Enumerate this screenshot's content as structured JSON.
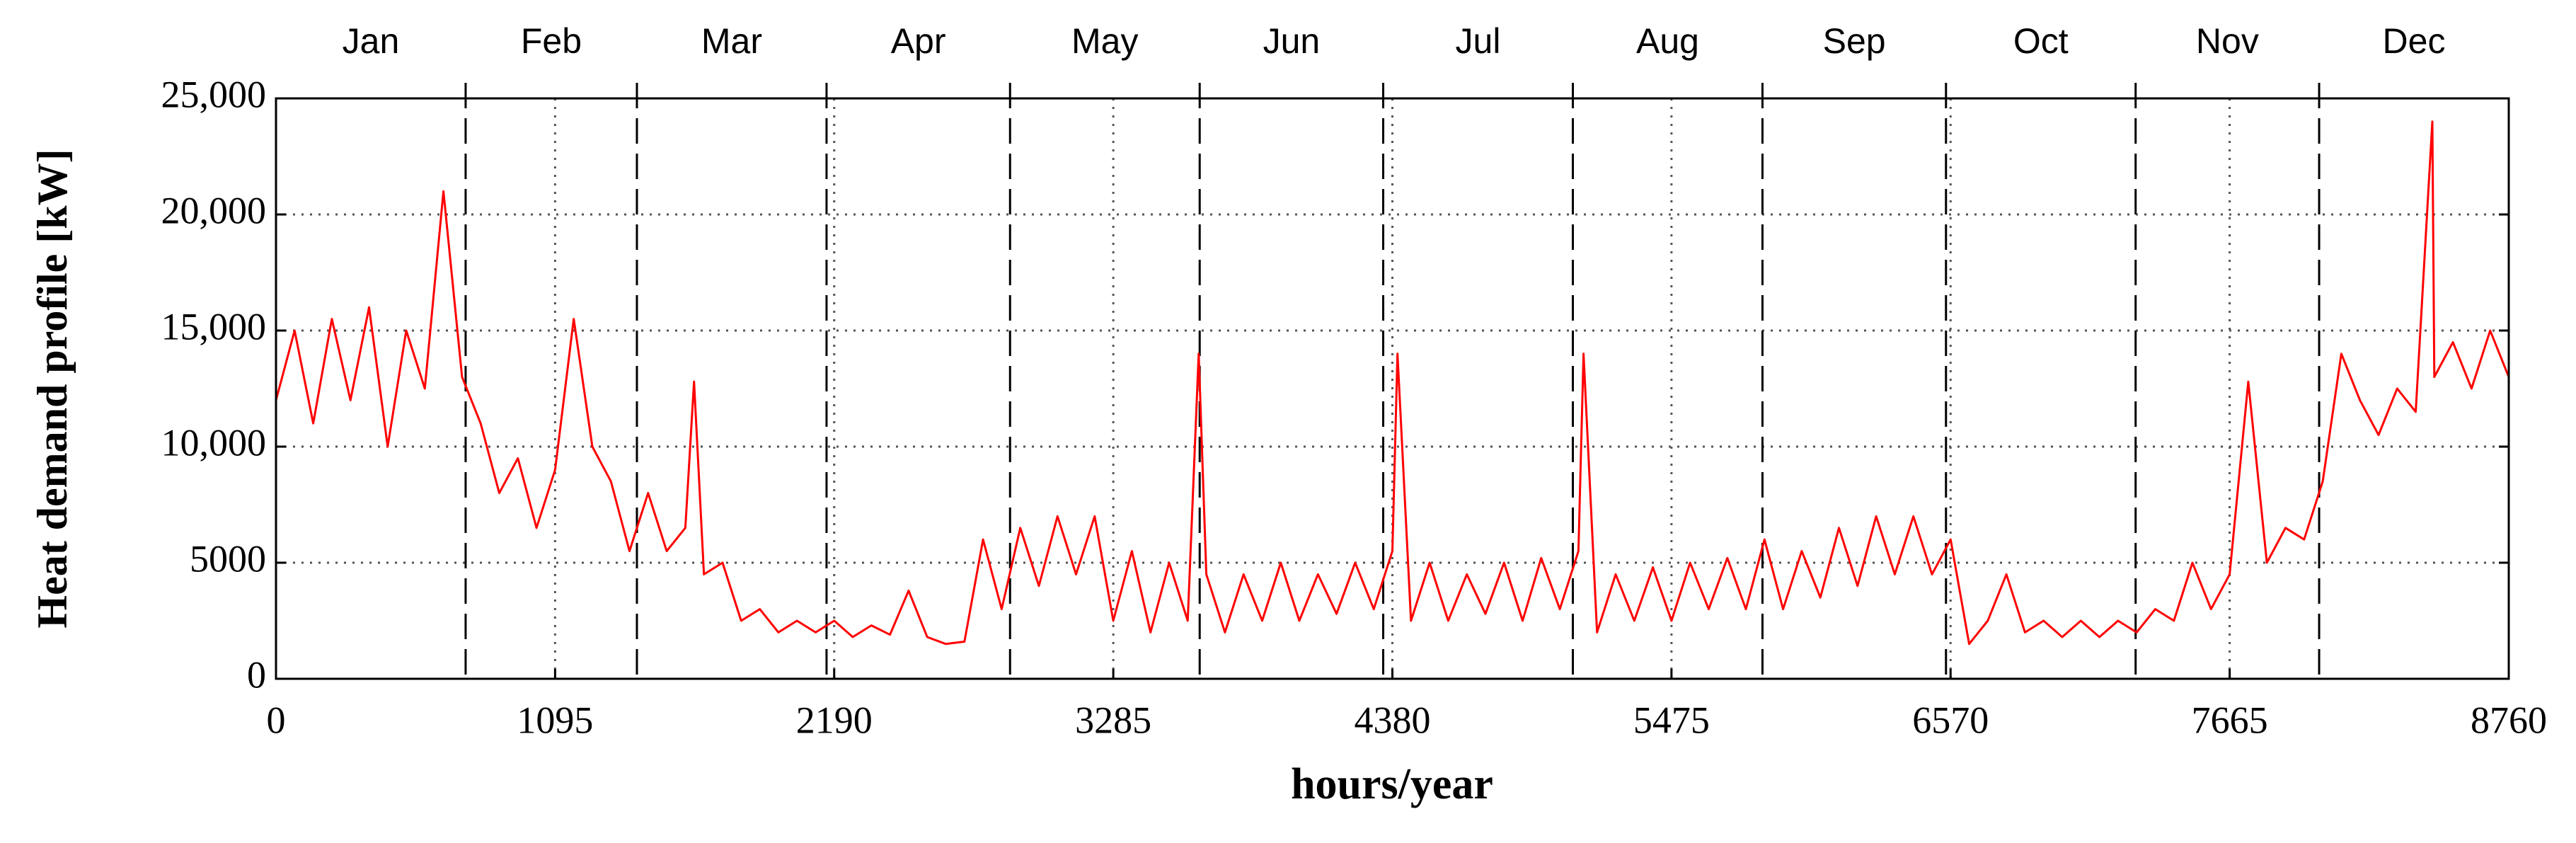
{
  "chart_data": {
    "type": "line",
    "xlabel": "hours/year",
    "ylabel": "Heat demand profile [kW]",
    "color": "#ff0000",
    "grid": true,
    "xlim": [
      0,
      8760
    ],
    "ylim": [
      0,
      25000
    ],
    "xticks": [
      0,
      1095,
      2190,
      3285,
      4380,
      5475,
      6570,
      7665,
      8760
    ],
    "yticks": [
      0,
      5000,
      {
        "value": 10000,
        "label": "10,000"
      },
      {
        "value": 15000,
        "label": "15,000"
      },
      {
        "value": 20000,
        "label": "20,000"
      },
      {
        "value": 25000,
        "label": "25,000"
      }
    ],
    "months": [
      "Jan",
      "Feb",
      "Mar",
      "Apr",
      "May",
      "Jun",
      "Jul",
      "Aug",
      "Sep",
      "Oct",
      "Nov",
      "Dec"
    ],
    "month_edges": [
      0,
      744,
      1416,
      2160,
      2880,
      3624,
      4344,
      5088,
      5832,
      6552,
      7296,
      8016,
      8760
    ],
    "x": [
      0,
      73,
      146,
      219,
      292,
      365,
      438,
      511,
      584,
      657,
      730,
      803,
      876,
      949,
      1022,
      1095,
      1168,
      1241,
      1314,
      1387,
      1460,
      1533,
      1606,
      1640,
      1679,
      1752,
      1825,
      1898,
      1971,
      2044,
      2117,
      2190,
      2263,
      2336,
      2409,
      2482,
      2555,
      2628,
      2701,
      2774,
      2847,
      2920,
      2993,
      3066,
      3139,
      3212,
      3285,
      3358,
      3431,
      3504,
      3577,
      3620,
      3650,
      3723,
      3796,
      3869,
      3942,
      4015,
      4088,
      4161,
      4234,
      4307,
      4380,
      4400,
      4453,
      4526,
      4599,
      4672,
      4745,
      4818,
      4891,
      4964,
      5037,
      5110,
      5130,
      5183,
      5256,
      5329,
      5402,
      5475,
      5548,
      5621,
      5694,
      5767,
      5840,
      5913,
      5986,
      6059,
      6132,
      6205,
      6278,
      6351,
      6424,
      6497,
      6570,
      6643,
      6716,
      6789,
      6862,
      6935,
      7008,
      7081,
      7154,
      7227,
      7300,
      7373,
      7446,
      7519,
      7592,
      7665,
      7738,
      7811,
      7884,
      7957,
      8030,
      8103,
      8176,
      8249,
      8322,
      8395,
      8460,
      8468,
      8541,
      8614,
      8687,
      8760
    ],
    "values": [
      12000,
      15000,
      11000,
      15500,
      12000,
      16000,
      10000,
      15000,
      12500,
      21000,
      13000,
      11000,
      8000,
      9500,
      6500,
      9000,
      15500,
      10000,
      8500,
      5500,
      8000,
      5500,
      6500,
      12800,
      4500,
      5000,
      2500,
      3000,
      2000,
      2500,
      2000,
      2500,
      1800,
      2300,
      1900,
      3800,
      1800,
      1500,
      1600,
      6000,
      3000,
      6500,
      4000,
      7000,
      4500,
      7000,
      2500,
      5500,
      2000,
      5000,
      2500,
      14000,
      4500,
      2000,
      4500,
      2500,
      5000,
      2500,
      4500,
      2800,
      5000,
      3000,
      5500,
      14000,
      2500,
      5000,
      2500,
      4500,
      2800,
      5000,
      2500,
      5200,
      3000,
      5500,
      14000,
      2000,
      4500,
      2500,
      4800,
      2500,
      5000,
      3000,
      5200,
      3000,
      6000,
      3000,
      5500,
      3500,
      6500,
      4000,
      7000,
      4500,
      7000,
      4500,
      6000,
      1500,
      2500,
      4500,
      2000,
      2500,
      1800,
      2500,
      1800,
      2500,
      2000,
      3000,
      2500,
      5000,
      3000,
      4500,
      12800,
      5000,
      6500,
      6000,
      8500,
      14000,
      12000,
      10500,
      12500,
      11500,
      24000,
      13000,
      14500,
      12500,
      15000,
      13000
    ]
  }
}
